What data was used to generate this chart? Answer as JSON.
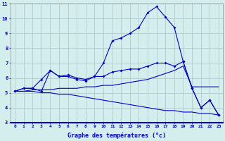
{
  "xlabel": "Graphe des températures (°c)",
  "background_color": "#d4eeee",
  "grid_color": "#b0cccc",
  "line_color": "#0000cc",
  "x": [
    0,
    1,
    2,
    3,
    4,
    5,
    6,
    7,
    8,
    9,
    10,
    11,
    12,
    13,
    14,
    15,
    16,
    17,
    18,
    19,
    20,
    21,
    22,
    23
  ],
  "line1": [
    5.1,
    5.3,
    5.3,
    5.1,
    6.5,
    6.1,
    6.1,
    5.9,
    5.8,
    6.1,
    7.0,
    8.5,
    8.7,
    9.0,
    9.4,
    10.4,
    10.8,
    10.1,
    9.4,
    7.1,
    5.3,
    4.0,
    4.5,
    3.5
  ],
  "line2": [
    5.1,
    5.3,
    5.3,
    5.9,
    6.5,
    6.1,
    6.2,
    6.0,
    5.9,
    6.1,
    6.1,
    6.4,
    6.5,
    6.6,
    6.6,
    6.8,
    7.0,
    7.0,
    6.8,
    7.1,
    5.3,
    4.0,
    4.5,
    3.5
  ],
  "line3": [
    5.1,
    5.1,
    5.1,
    5.0,
    5.0,
    4.9,
    4.9,
    4.8,
    4.7,
    4.6,
    4.5,
    4.4,
    4.3,
    4.2,
    4.1,
    4.0,
    3.9,
    3.8,
    3.8,
    3.7,
    3.7,
    3.6,
    3.6,
    3.5
  ],
  "line4": [
    5.1,
    5.1,
    5.2,
    5.2,
    5.2,
    5.3,
    5.3,
    5.3,
    5.4,
    5.4,
    5.5,
    5.5,
    5.6,
    5.7,
    5.8,
    5.9,
    6.1,
    6.3,
    6.5,
    6.8,
    5.4,
    5.4,
    5.4,
    5.4
  ],
  "ylim": [
    3,
    11
  ],
  "xlim": [
    -0.5,
    23.5
  ],
  "yticks": [
    3,
    4,
    5,
    6,
    7,
    8,
    9,
    10,
    11
  ],
  "xticks": [
    0,
    1,
    2,
    3,
    4,
    5,
    6,
    7,
    8,
    9,
    10,
    11,
    12,
    13,
    14,
    15,
    16,
    17,
    18,
    19,
    20,
    21,
    22,
    23
  ]
}
